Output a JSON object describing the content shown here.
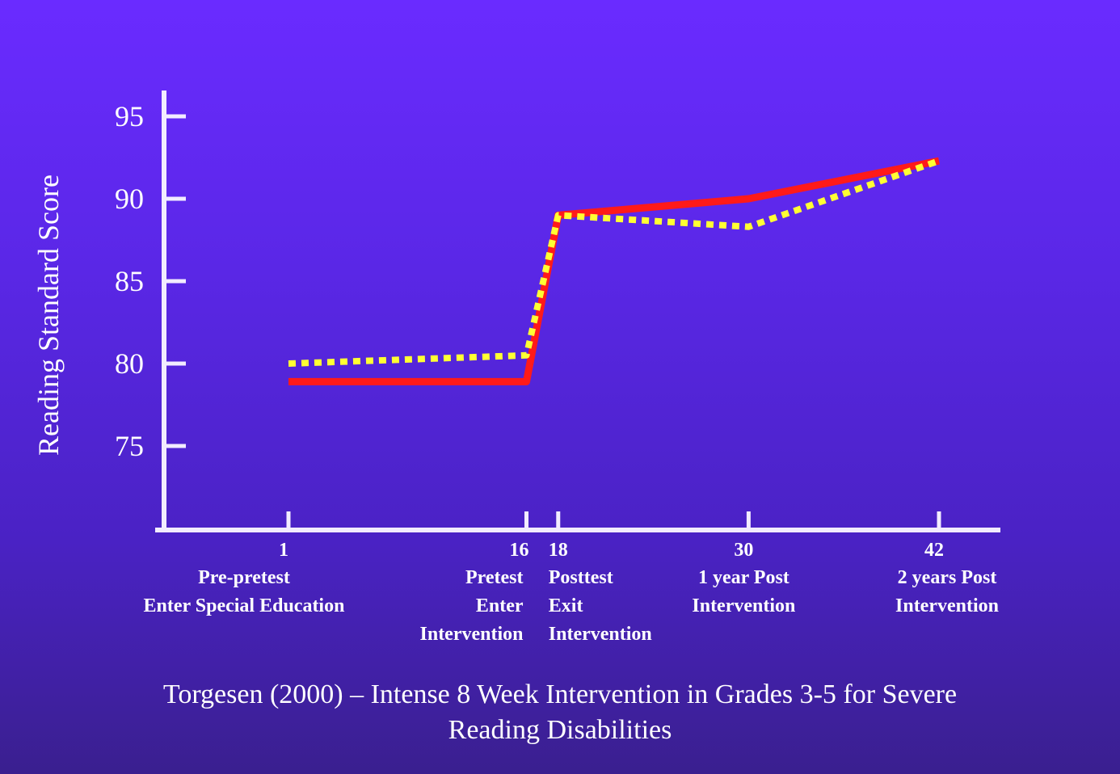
{
  "chart_data": {
    "type": "line",
    "ylabel": "Reading Standard Score",
    "yticks": [
      75,
      80,
      85,
      90,
      95
    ],
    "ylim": [
      71,
      96.6
    ],
    "x_positions": [
      1,
      16,
      18,
      30,
      42
    ],
    "x_tick_labels": [
      {
        "number": "1",
        "lines": [
          "Pre-pretest",
          "Enter Special Education"
        ]
      },
      {
        "number": "16",
        "lines": [
          "Pretest",
          "Enter",
          "Intervention"
        ]
      },
      {
        "number": "18",
        "lines": [
          "Posttest",
          "Exit",
          "Intervention"
        ]
      },
      {
        "number": "30",
        "lines": [
          "1 year Post",
          "Intervention"
        ]
      },
      {
        "number": "42",
        "lines": [
          "2 years Post",
          "Intervention"
        ]
      }
    ],
    "series": [
      {
        "color": "#ff1a1a",
        "style": "solid",
        "values": [
          78.9,
          78.9,
          89.0,
          90.0,
          92.3
        ]
      },
      {
        "color": "#ffff33",
        "style": "dotted",
        "values": [
          80.0,
          80.5,
          89.0,
          88.3,
          92.3
        ]
      }
    ],
    "grid": false,
    "title": "Torgesen (2000) – Intense 8 Week Intervention in Grades 3-5 for Severe Reading Disabilities"
  },
  "caption": {
    "line1": "Torgesen (2000) – Intense 8 Week Intervention in Grades 3-5 for Severe",
    "line2": "Reading Disabilities"
  }
}
